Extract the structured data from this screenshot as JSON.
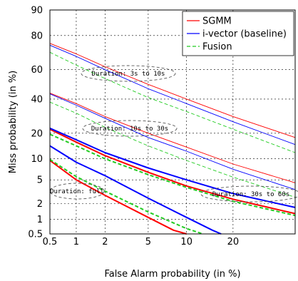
{
  "chart_data": {
    "type": "line",
    "title": "",
    "xlabel": "False Alarm probability (in %)",
    "ylabel": "Miss probability (in %)",
    "scale": "normal-deviate (DET)",
    "xlim": [
      0.5,
      40
    ],
    "ylim": [
      0.5,
      90
    ],
    "x_ticks": [
      "0.5",
      "1",
      "2",
      "5",
      "10",
      "20"
    ],
    "y_ticks": [
      "0.5",
      "1",
      "2",
      "5",
      "10",
      "20",
      "40",
      "60",
      "80",
      "90"
    ],
    "grid": true,
    "legend_position": "top-right",
    "series": [
      {
        "name": "SGMM",
        "color": "#ff0000",
        "style": "solid"
      },
      {
        "name": "i-vector (baseline)",
        "color": "#0000ff",
        "style": "solid"
      },
      {
        "name": "Fusion",
        "color": "#22cc22",
        "style": "dashed"
      }
    ],
    "groups": [
      {
        "label": "Duration: 3s to 10s",
        "lines": [
          {
            "series": 0,
            "points": [
              [
                0.5,
                76
              ],
              [
                1,
                70
              ],
              [
                2,
                62
              ],
              [
                5,
                50
              ],
              [
                10,
                40
              ],
              [
                20,
                29
              ],
              [
                40,
                18
              ]
            ]
          },
          {
            "series": 1,
            "points": [
              [
                0.5,
                75
              ],
              [
                1,
                68.5
              ],
              [
                2,
                60
              ],
              [
                5,
                47
              ],
              [
                10,
                37
              ],
              [
                20,
                26
              ],
              [
                40,
                15
              ]
            ]
          },
          {
            "series": 2,
            "points": [
              [
                0.5,
                71
              ],
              [
                1,
                63
              ],
              [
                2,
                54
              ],
              [
                5,
                41
              ],
              [
                10,
                32
              ],
              [
                20,
                22
              ],
              [
                40,
                12
              ]
            ]
          }
        ]
      },
      {
        "label": "Duration: 10s to 30s",
        "lines": [
          {
            "series": 0,
            "points": [
              [
                0.5,
                44
              ],
              [
                1,
                37
              ],
              [
                2,
                29
              ],
              [
                5,
                20
              ],
              [
                10,
                14
              ],
              [
                20,
                8.5
              ],
              [
                40,
                4.5
              ]
            ]
          },
          {
            "series": 1,
            "points": [
              [
                0.5,
                43.5
              ],
              [
                1,
                36
              ],
              [
                2,
                28
              ],
              [
                5,
                18
              ],
              [
                10,
                12.5
              ],
              [
                20,
                7.2
              ],
              [
                40,
                3.5
              ]
            ]
          },
          {
            "series": 2,
            "points": [
              [
                0.5,
                38
              ],
              [
                1,
                31
              ],
              [
                2,
                23
              ],
              [
                5,
                14.5
              ],
              [
                10,
                9.5
              ],
              [
                20,
                5.5
              ],
              [
                40,
                2.6
              ]
            ]
          }
        ]
      },
      {
        "label": "Duration: 30s to 60s",
        "lines": [
          {
            "series": 0,
            "points": [
              [
                0.5,
                22
              ],
              [
                1,
                16
              ],
              [
                2,
                11
              ],
              [
                5,
                6.5
              ],
              [
                10,
                4
              ],
              [
                20,
                2.4
              ],
              [
                40,
                1.3
              ]
            ]
          },
          {
            "series": 1,
            "points": [
              [
                0.5,
                22.5
              ],
              [
                1,
                17
              ],
              [
                2,
                12
              ],
              [
                5,
                7.5
              ],
              [
                10,
                5
              ],
              [
                20,
                3
              ],
              [
                40,
                1.7
              ]
            ]
          },
          {
            "series": 2,
            "points": [
              [
                0.5,
                19.5
              ],
              [
                1,
                14.5
              ],
              [
                2,
                10
              ],
              [
                5,
                6
              ],
              [
                10,
                3.8
              ],
              [
                20,
                2.2
              ],
              [
                40,
                1.2
              ]
            ]
          }
        ]
      },
      {
        "label": "Duration: full",
        "lines": [
          {
            "series": 0,
            "points": [
              [
                0.5,
                9.5
              ],
              [
                1,
                5
              ],
              [
                2,
                2.8
              ],
              [
                5,
                1.1
              ],
              [
                8,
                0.6
              ],
              [
                10,
                0.5
              ]
            ]
          },
          {
            "series": 1,
            "points": [
              [
                0.5,
                14.5
              ],
              [
                1,
                9
              ],
              [
                2,
                5.8
              ],
              [
                5,
                2.5
              ],
              [
                10,
                1.1
              ],
              [
                15,
                0.6
              ],
              [
                17,
                0.5
              ]
            ]
          },
          {
            "series": 2,
            "points": [
              [
                0.5,
                9.8
              ],
              [
                1,
                5.6
              ],
              [
                2,
                3.3
              ],
              [
                5,
                1.4
              ],
              [
                10,
                0.65
              ],
              [
                13,
                0.5
              ]
            ]
          }
        ]
      }
    ]
  }
}
